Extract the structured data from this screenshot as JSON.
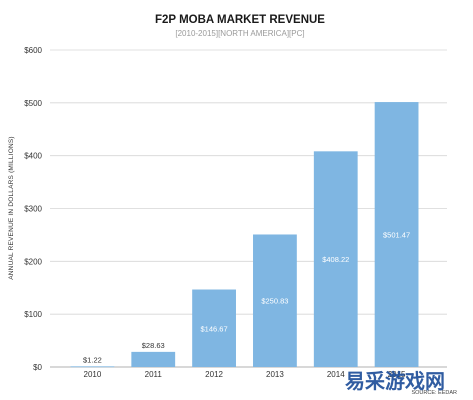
{
  "chart_data": {
    "type": "bar",
    "title": "F2P MOBA MARKET REVENUE",
    "subtitle": "[2010-2015][NORTH AMERICA][PC]",
    "xlabel": "",
    "ylabel": "ANNUAL REVENUE IN DOLLARS (MILLIONS)",
    "categories": [
      "2010",
      "2011",
      "2012",
      "2013",
      "2014",
      "2015"
    ],
    "values": [
      1.22,
      28.63,
      146.67,
      250.83,
      408.22,
      501.47
    ],
    "data_labels": [
      "$1.22",
      "$28.63",
      "$146.67",
      "$250.83",
      "$408.22",
      "$501.47"
    ],
    "ylim": [
      0,
      600
    ],
    "yticks": [
      0,
      100,
      200,
      300,
      400,
      500,
      600
    ],
    "ytick_labels": [
      "$0",
      "$100",
      "$200",
      "$300",
      "$400",
      "$500",
      "$600"
    ],
    "grid": true,
    "bar_color": "#7fb6e2",
    "label_color_inside": "#ffffff",
    "label_color_outside": "#333333",
    "source": "SOURCE: EEDAR"
  },
  "watermark": {
    "text": "易采游戏网",
    "color": "#1f4f9a",
    "accent_color": "#e0262b"
  }
}
